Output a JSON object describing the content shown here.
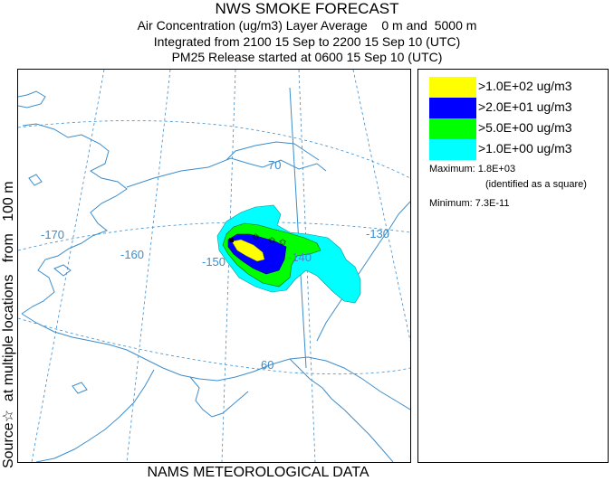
{
  "title": {
    "line1": "NWS SMOKE FORECAST",
    "line2": "Air Concentration (ug/m3) Layer Average    0 m and  5000 m",
    "line3": "Integrated from 2100 15 Sep to 2200 15 Sep 10 (UTC)",
    "line4": "PM25 Release started at 0600 15 Sep 10 (UTC)"
  },
  "side_label": "Source☆  at multiple locations   from   100 m",
  "bottom_label": "NAMS METEOROLOGICAL DATA",
  "map": {
    "coastline_color": "#3c8dcc",
    "longitude_labels": [
      "-170",
      "-160",
      "-150",
      "-140",
      "-130"
    ],
    "latitude_labels": [
      "70",
      "60"
    ]
  },
  "legend": {
    "entries": [
      {
        "label": ">1.0E+02 ug/m3",
        "color": "#ffff00"
      },
      {
        "label": ">2.0E+01 ug/m3",
        "color": "#0000ff"
      },
      {
        "label": ">5.0E+00 ug/m3",
        "color": "#00ff00"
      },
      {
        "label": ">1.0E+00 ug/m3",
        "color": "#00ffff"
      }
    ],
    "maximum_label": "Maximum: 1.8E+03",
    "maximum_note": "(identified as a square)",
    "minimum_label": "Minimum: 7.3E-11"
  }
}
